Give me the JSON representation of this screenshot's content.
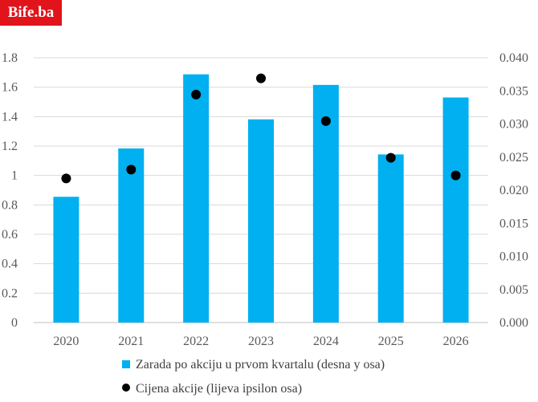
{
  "brand": {
    "logo_text": "Bife.ba"
  },
  "colors": {
    "bar": "#00b0f0",
    "point": "#000000",
    "grid": "#d9d9d9",
    "axis": "#bfbfbf",
    "logo_bg": "#e1141b"
  },
  "chart_data": {
    "type": "bar",
    "categories": [
      "2020",
      "2021",
      "2022",
      "2023",
      "2024",
      "2025",
      "2026"
    ],
    "series": [
      {
        "name": "Zarada po akciju u prvom kvartalu (desna y osa)",
        "type": "bar",
        "axis": "right",
        "values": [
          0.019,
          0.0263,
          0.0375,
          0.0307,
          0.0359,
          0.0254,
          0.034
        ]
      },
      {
        "name": "Cijena akcije (lijeva ipsilon osa)",
        "type": "scatter",
        "axis": "left",
        "values": [
          0.98,
          1.04,
          1.55,
          1.66,
          1.37,
          1.12,
          1.0
        ]
      }
    ],
    "y_left": {
      "lim": [
        0,
        1.8
      ],
      "ticks": [
        0,
        0.2,
        0.4,
        0.6,
        0.8,
        1,
        1.2,
        1.4,
        1.6,
        1.8
      ],
      "tick_labels": [
        "0",
        "0.2",
        "0.4",
        "0.6",
        "0.8",
        "1",
        "1.2",
        "1.4",
        "1.6",
        "1.8"
      ]
    },
    "y_right": {
      "lim": [
        0,
        0.04
      ],
      "ticks": [
        0,
        0.005,
        0.01,
        0.015,
        0.02,
        0.025,
        0.03,
        0.035,
        0.04
      ],
      "tick_labels": [
        "0.000",
        "0.005",
        "0.010",
        "0.015",
        "0.020",
        "0.025",
        "0.030",
        "0.035",
        "0.040"
      ]
    },
    "grid": true,
    "legend": "bottom"
  }
}
